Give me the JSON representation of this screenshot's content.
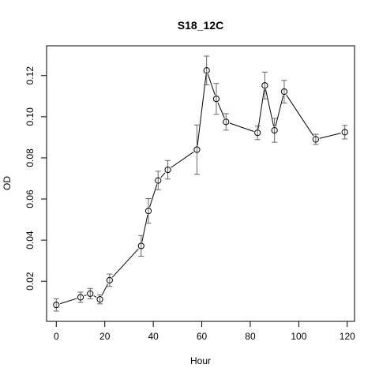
{
  "chart_data": {
    "type": "scatter",
    "title": "S18_12C",
    "xlabel": "Hour",
    "ylabel": "OD",
    "xlim": [
      -4,
      123
    ],
    "ylim": [
      0.0005,
      0.1345
    ],
    "x_ticks": [
      0,
      20,
      40,
      60,
      80,
      100,
      120
    ],
    "y_ticks": [
      0.02,
      0.04,
      0.06,
      0.08,
      0.1,
      0.12
    ],
    "x_tick_labels": [
      "0",
      "20",
      "40",
      "60",
      "80",
      "100",
      "120"
    ],
    "y_tick_labels": [
      "0.02",
      "0.04",
      "0.06",
      "0.08",
      "0.10",
      "0.12"
    ],
    "grid": false,
    "legend": "none",
    "series": [
      {
        "connected": true,
        "points": [
          {
            "x": 0,
            "y": 0.0085,
            "err": 0.003
          },
          {
            "x": 10,
            "y": 0.0122,
            "err": 0.0025
          },
          {
            "x": 14,
            "y": 0.014,
            "err": 0.0025
          },
          {
            "x": 18,
            "y": 0.0112,
            "err": 0.0022
          },
          {
            "x": 22,
            "y": 0.0205,
            "err": 0.003
          },
          {
            "x": 35,
            "y": 0.0372,
            "err": 0.005
          },
          {
            "x": 38,
            "y": 0.0542,
            "err": 0.006
          },
          {
            "x": 42,
            "y": 0.069,
            "err": 0.0045
          },
          {
            "x": 46,
            "y": 0.0742,
            "err": 0.0045
          },
          {
            "x": 58,
            "y": 0.084,
            "err": 0.012
          },
          {
            "x": 62,
            "y": 0.1225,
            "err": 0.007
          },
          {
            "x": 66,
            "y": 0.1087,
            "err": 0.0075
          },
          {
            "x": 70,
            "y": 0.0975,
            "err": 0.004
          },
          {
            "x": 83,
            "y": 0.0922,
            "err": 0.0033
          },
          {
            "x": 86,
            "y": 0.1152,
            "err": 0.0065
          },
          {
            "x": 90,
            "y": 0.0934,
            "err": 0.0058
          },
          {
            "x": 94,
            "y": 0.1122,
            "err": 0.0055
          },
          {
            "x": 107,
            "y": 0.089,
            "err": 0.0025
          },
          {
            "x": 119,
            "y": 0.0925,
            "err": 0.0033
          }
        ]
      }
    ]
  }
}
